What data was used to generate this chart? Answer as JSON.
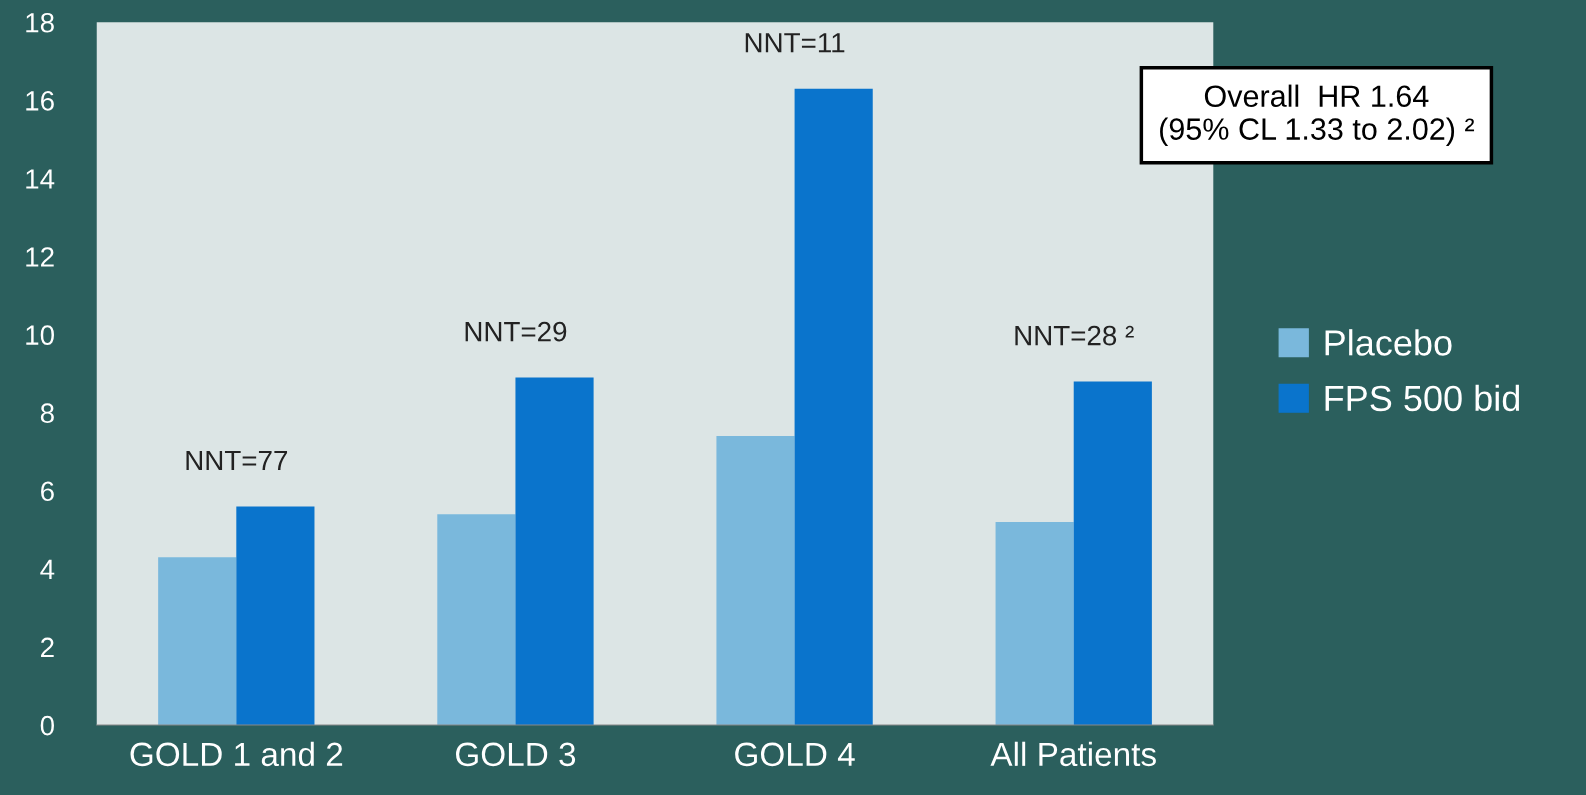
{
  "chart_data": {
    "type": "bar",
    "categories": [
      "GOLD 1 and 2",
      "GOLD 3",
      "GOLD 4",
      "All Patients"
    ],
    "series": [
      {
        "name": "Placebo",
        "color": "#7ab8dc",
        "values": [
          4.3,
          5.4,
          7.4,
          5.2
        ]
      },
      {
        "name": "FPS 500 bid",
        "color": "#0a74cc",
        "values": [
          5.6,
          8.9,
          16.3,
          8.8
        ]
      }
    ],
    "ylim": [
      0,
      18
    ],
    "yticks": [
      0,
      2,
      4,
      6,
      8,
      10,
      12,
      14,
      16,
      18
    ],
    "grid": false,
    "legend": "right",
    "annotations": [
      {
        "text": "NNT=77",
        "x": "GOLD 1 and 2",
        "y": 5.6
      },
      {
        "text": "NNT=29",
        "x": "GOLD 3",
        "y": 8.9
      },
      {
        "text": "NNT=11",
        "x": "GOLD 4",
        "y": 16.3
      },
      {
        "text": "NNT=28 ²",
        "x": "All Patients",
        "y": 8.8
      },
      "Overall  HR 1.64\n(95% CL 1.33 to 2.02) ²"
    ]
  }
}
